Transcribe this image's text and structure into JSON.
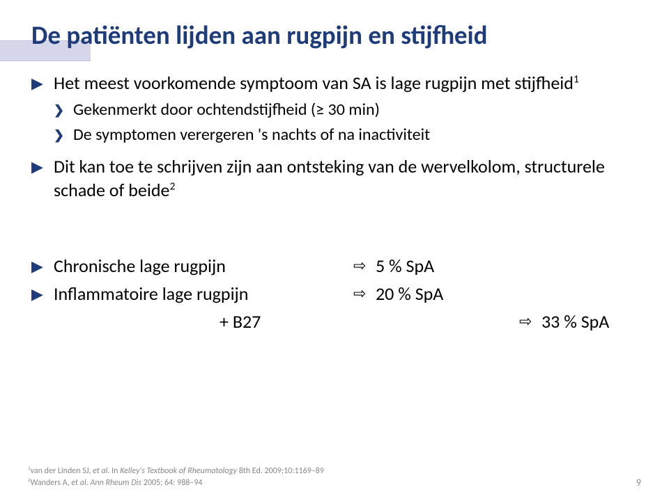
{
  "title": "De patiënten lijden aan rugpijn en stijfheid",
  "bullets": {
    "b1": "Het meest voorkomende symptoom van SA is lage rugpijn met stijfheid",
    "b1_sup": "1",
    "b1_sub1": "Gekenmerkt door ochtendstijfheid (≥ 30 min)",
    "b1_sub2": "De symptomen verergeren 's nachts of na inactiviteit",
    "b2": "Dit kan toe te schrijven zijn aan ontsteking van de wervelkolom, structurele schade of beide",
    "b2_sup": "2"
  },
  "stats": {
    "row1_left": "Chronische lage rugpijn",
    "row1_right": "5 % SpA",
    "row2_left": "Inflammatoire lage rugpijn",
    "row2_right": "20 % SpA",
    "row3_left": "+ B27",
    "row3_right": "33 % SpA"
  },
  "refs": {
    "r1_prefix": "1",
    "r1_a": "van der Linden SJ, ",
    "r1_b": "et al",
    "r1_c": ". In ",
    "r1_d": "Kelley's Textbook of Rheumatology ",
    "r1_e": "8th Ed. 2009;10:1169–89",
    "r2_prefix": "2",
    "r2_a": "Wanders A, ",
    "r2_b": "et al",
    "r2_c": ". ",
    "r2_d": "Ann Rheum Dis ",
    "r2_e": "2005; 64: 988–94"
  },
  "page_number": "9"
}
